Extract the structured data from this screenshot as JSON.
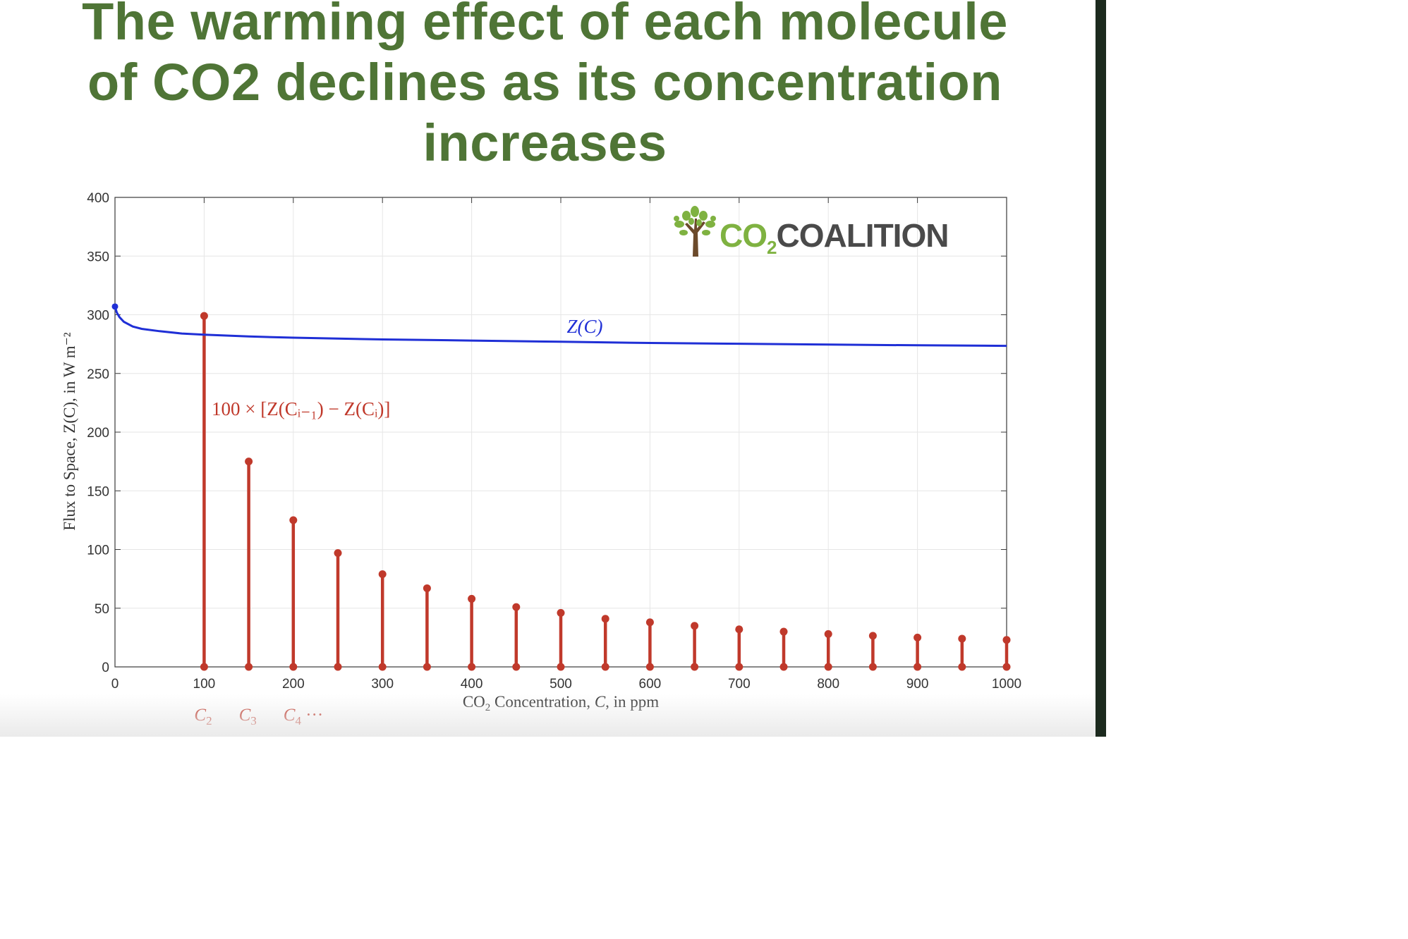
{
  "title_lines": [
    "The warming effect of each molecule",
    "of CO2 declines as its concentration",
    "increases"
  ],
  "logo": {
    "text_main": "CO",
    "text_sub": "2",
    "text_rest": "COALITION",
    "icon": "tree-icon"
  },
  "colors": {
    "title": "#4f7536",
    "curve": "#1f2fd6",
    "stems": "#c0392b",
    "logo_green": "#7fb241",
    "logo_gray": "#4a4a4a"
  },
  "chart_data": {
    "type": "line+stem",
    "x_range": [
      0,
      1000
    ],
    "y_range": [
      0,
      400
    ],
    "x_ticks": [
      0,
      100,
      200,
      300,
      400,
      500,
      600,
      700,
      800,
      900,
      1000
    ],
    "y_ticks": [
      0,
      50,
      100,
      150,
      200,
      250,
      300,
      350,
      400
    ],
    "xlabel": {
      "pre": "CO",
      "sub": "2",
      "post": " Concentration, ",
      "italic": "C",
      "end": ", in ppm"
    },
    "ylabel": "Flux to Space, Z(C), in W m⁻²",
    "grid": true,
    "curve": {
      "name": "Z(C)",
      "x": [
        0,
        2,
        5,
        10,
        20,
        30,
        50,
        75,
        100,
        150,
        200,
        300,
        400,
        500,
        600,
        700,
        800,
        900,
        1000
      ],
      "y": [
        307,
        302,
        298,
        294,
        290,
        288,
        286,
        284,
        283,
        281.5,
        280.5,
        279,
        278,
        277,
        276,
        275.3,
        274.6,
        274,
        273.5
      ]
    },
    "stems": {
      "label": "100 × [Z(Cᵢ₋₁) − Z(Cᵢ)]",
      "x": [
        100,
        150,
        200,
        250,
        300,
        350,
        400,
        450,
        500,
        550,
        600,
        650,
        700,
        750,
        800,
        850,
        900,
        950,
        1000
      ],
      "y": [
        299,
        175,
        125,
        97,
        79,
        67,
        58,
        51,
        46,
        41,
        38,
        35,
        32,
        30,
        28,
        26.5,
        25,
        24,
        23
      ]
    },
    "c_labels": [
      {
        "base": "C",
        "sub": "2",
        "x": 100
      },
      {
        "base": "C",
        "sub": "3",
        "x": 150
      },
      {
        "base": "C",
        "sub": "4",
        "suffix": " ···",
        "x": 200
      }
    ]
  }
}
